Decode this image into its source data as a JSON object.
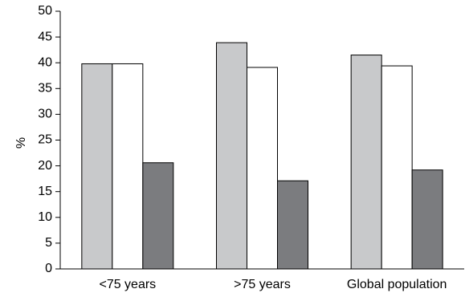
{
  "chart_data": {
    "type": "bar",
    "title": "",
    "xlabel": "",
    "ylabel": "%",
    "ylim": [
      0,
      50
    ],
    "yticks": [
      0,
      5,
      10,
      15,
      20,
      25,
      30,
      35,
      40,
      45,
      50
    ],
    "grid": false,
    "legend": "none",
    "categories": [
      "<75 years",
      ">75 years",
      "Global population"
    ],
    "series": [
      {
        "values": [
          39.8,
          43.9,
          41.5
        ],
        "color": "#c8c9cb"
      },
      {
        "values": [
          39.8,
          39.1,
          39.4
        ],
        "color": "#ffffff"
      },
      {
        "values": [
          20.6,
          17.1,
          19.2
        ],
        "color": "#7b7c7f"
      }
    ]
  }
}
